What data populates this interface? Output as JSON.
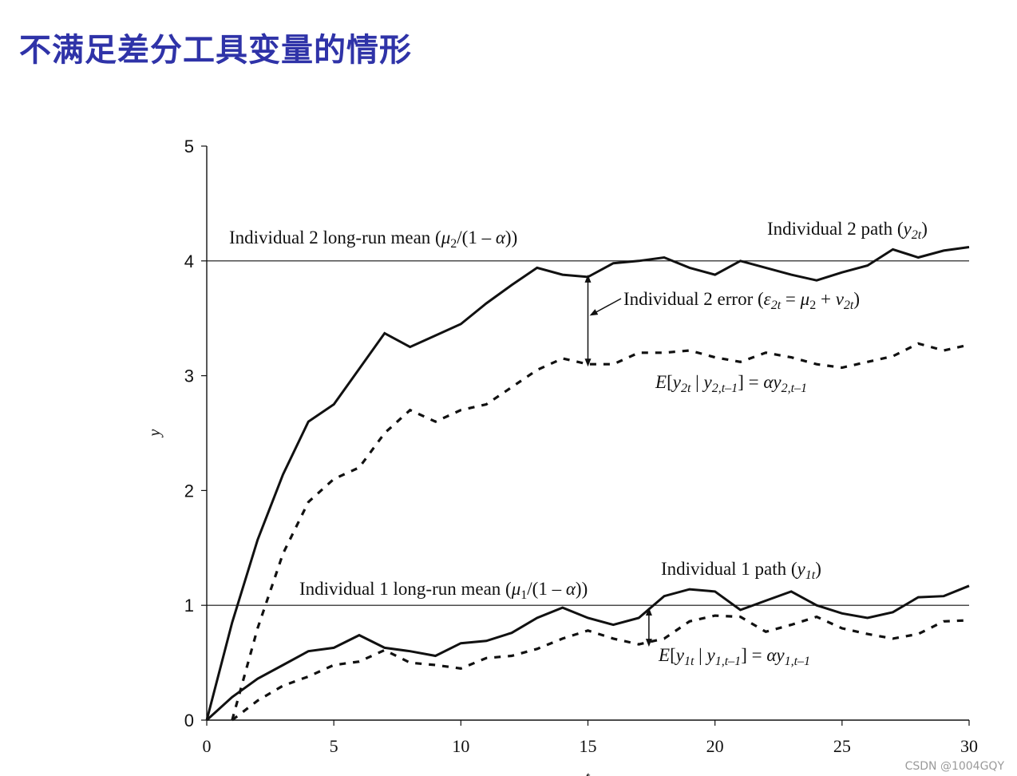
{
  "slide": {
    "title": "不满足差分工具变量的情形"
  },
  "watermark": "CSDN @1004GQY",
  "colors": {
    "title": "#2f33a8",
    "lines": "#111111"
  },
  "chart_data": {
    "type": "line",
    "xlabel": "t",
    "ylabel": "y",
    "xlim": [
      0,
      30
    ],
    "ylim": [
      0,
      5
    ],
    "xticks": [
      "0",
      "5",
      "10",
      "15",
      "20",
      "25",
      "30"
    ],
    "yticks": [
      "0",
      "1",
      "2",
      "3",
      "4",
      "5"
    ],
    "reference_lines": [
      {
        "y": 4.0,
        "label": "Individual 2 long-run mean (μ₂/(1 – α))"
      },
      {
        "y": 1.0,
        "label": "Individual 1 long-run mean (μ₁/(1 – α))"
      }
    ],
    "series": [
      {
        "name": "Individual 2 path (y₂ₜ)",
        "style": "solid",
        "x": [
          0,
          1,
          2,
          3,
          4,
          5,
          6,
          7,
          8,
          9,
          10,
          11,
          12,
          13,
          14,
          15,
          16,
          17,
          18,
          19,
          20,
          21,
          22,
          23,
          24,
          25,
          26,
          27,
          28,
          29,
          30
        ],
        "y": [
          0,
          0.85,
          1.57,
          2.14,
          2.6,
          2.75,
          3.06,
          3.37,
          3.25,
          3.35,
          3.45,
          3.63,
          3.79,
          3.94,
          3.88,
          3.86,
          3.98,
          4.0,
          4.03,
          3.94,
          3.88,
          4.0,
          3.94,
          3.88,
          3.83,
          3.9,
          3.96,
          4.1,
          4.03,
          4.09,
          4.12
        ]
      },
      {
        "name": "E[y₂ₜ | y₂,ₜ₋₁] = αy₂,ₜ₋₁",
        "style": "dashed",
        "x": [
          1,
          2,
          3,
          4,
          5,
          6,
          7,
          8,
          9,
          10,
          11,
          12,
          13,
          14,
          15,
          16,
          17,
          18,
          19,
          20,
          21,
          22,
          23,
          24,
          25,
          26,
          27,
          28,
          29,
          30
        ],
        "y": [
          0,
          0.8,
          1.45,
          1.9,
          2.1,
          2.2,
          2.5,
          2.7,
          2.6,
          2.7,
          2.75,
          2.9,
          3.05,
          3.15,
          3.1,
          3.1,
          3.2,
          3.2,
          3.22,
          3.16,
          3.12,
          3.2,
          3.16,
          3.1,
          3.07,
          3.12,
          3.17,
          3.28,
          3.22,
          3.27
        ]
      },
      {
        "name": "Individual 1 path (y₁ₜ)",
        "style": "solid",
        "x": [
          0,
          1,
          2,
          3,
          4,
          5,
          6,
          7,
          8,
          9,
          10,
          11,
          12,
          13,
          14,
          15,
          16,
          17,
          18,
          19,
          20,
          21,
          22,
          23,
          24,
          25,
          26,
          27,
          28,
          29,
          30
        ],
        "y": [
          0,
          0.2,
          0.36,
          0.48,
          0.6,
          0.63,
          0.74,
          0.63,
          0.6,
          0.56,
          0.67,
          0.69,
          0.76,
          0.89,
          0.98,
          0.89,
          0.83,
          0.89,
          1.08,
          1.14,
          1.12,
          0.96,
          1.04,
          1.12,
          1.0,
          0.93,
          0.89,
          0.94,
          1.07,
          1.08,
          1.17
        ]
      },
      {
        "name": "E[y₁ₜ | y₁,ₜ₋₁] = αy₁,ₜ₋₁",
        "style": "dashed",
        "x": [
          1,
          2,
          3,
          4,
          5,
          6,
          7,
          8,
          9,
          10,
          11,
          12,
          13,
          14,
          15,
          16,
          17,
          18,
          19,
          20,
          21,
          22,
          23,
          24,
          25,
          26,
          27,
          28,
          29,
          30
        ],
        "y": [
          0,
          0.17,
          0.3,
          0.38,
          0.48,
          0.51,
          0.61,
          0.5,
          0.48,
          0.45,
          0.54,
          0.56,
          0.62,
          0.71,
          0.78,
          0.71,
          0.66,
          0.71,
          0.86,
          0.91,
          0.9,
          0.77,
          0.83,
          0.9,
          0.8,
          0.75,
          0.71,
          0.75,
          0.86,
          0.87
        ]
      }
    ],
    "annotations": [
      {
        "text": "Individual 2 path (y₂ₜ)"
      },
      {
        "text": "Individual 2 error (ε₂ₜ = μ₂ + v₂ₜ)"
      },
      {
        "text": "E[y₂ₜ | y₂,ₜ₋₁] = αy₂,ₜ₋₁"
      },
      {
        "text": "Individual 1 path (y₁ₜ)"
      },
      {
        "text": "E[y₁ₜ | y₁,ₜ₋₁] = αy₁,ₜ₋₁"
      }
    ]
  }
}
